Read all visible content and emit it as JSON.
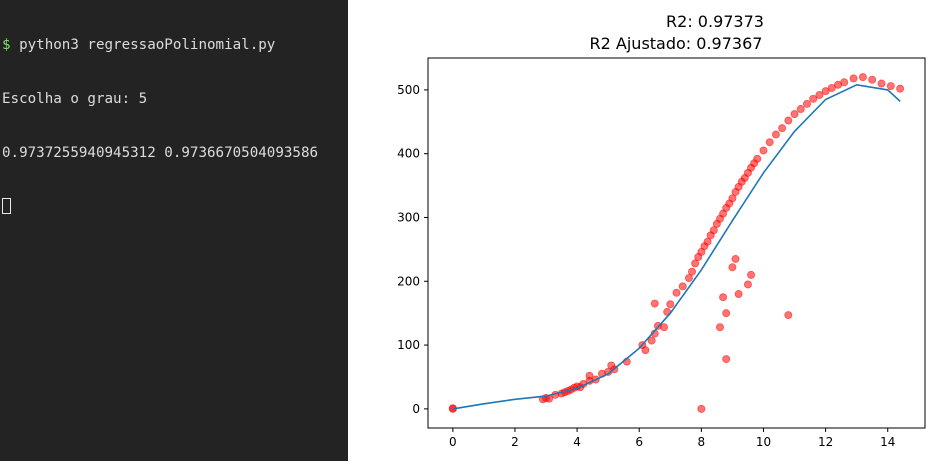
{
  "terminal": {
    "prompt_symbol": "$",
    "command": " python3 regressaoPolinomial.py",
    "line2": "Escolha o grau: 5",
    "line3": "0.9737255940945312 0.9736670504093586",
    "colors": {
      "background": "#232323",
      "text": "#dcdcdc",
      "prompt": "#7fe06a"
    }
  },
  "chart_data": {
    "type": "scatter",
    "title_line1": "R2: 0.97373",
    "title_line2": "R2 Ajustado: 0.97367",
    "xlabel": "",
    "ylabel": "",
    "xlim": [
      -0.8,
      15.2
    ],
    "ylim": [
      -30,
      550
    ],
    "x_ticks": [
      0,
      2,
      4,
      6,
      8,
      10,
      12,
      14
    ],
    "y_ticks": [
      0,
      100,
      200,
      300,
      400,
      500
    ],
    "grid": false,
    "series": [
      {
        "kind": "scatter",
        "color": "#ff0000",
        "alpha": 0.55,
        "points": [
          [
            0,
            0
          ],
          [
            0,
            1
          ],
          [
            2.9,
            15
          ],
          [
            3.0,
            17
          ],
          [
            3.1,
            16
          ],
          [
            3.3,
            22
          ],
          [
            3.5,
            24
          ],
          [
            3.6,
            26
          ],
          [
            3.7,
            28
          ],
          [
            3.8,
            30
          ],
          [
            3.9,
            33
          ],
          [
            4.0,
            35
          ],
          [
            4.1,
            34
          ],
          [
            4.2,
            39
          ],
          [
            4.4,
            44
          ],
          [
            4.4,
            52
          ],
          [
            4.6,
            46
          ],
          [
            4.8,
            55
          ],
          [
            5.0,
            58
          ],
          [
            5.2,
            62
          ],
          [
            5.1,
            68
          ],
          [
            5.6,
            74
          ],
          [
            6.1,
            100
          ],
          [
            6.2,
            92
          ],
          [
            6.4,
            107
          ],
          [
            6.5,
            118
          ],
          [
            6.5,
            165
          ],
          [
            6.6,
            130
          ],
          [
            6.8,
            128
          ],
          [
            6.9,
            152
          ],
          [
            7.0,
            164
          ],
          [
            7.2,
            182
          ],
          [
            7.4,
            192
          ],
          [
            7.6,
            205
          ],
          [
            7.7,
            215
          ],
          [
            7.8,
            228
          ],
          [
            7.9,
            238
          ],
          [
            8.0,
            246
          ],
          [
            8.1,
            255
          ],
          [
            8.2,
            262
          ],
          [
            8.3,
            272
          ],
          [
            8.4,
            280
          ],
          [
            8.5,
            290
          ],
          [
            8.6,
            298
          ],
          [
            8.7,
            306
          ],
          [
            8.8,
            315
          ],
          [
            8.9,
            322
          ],
          [
            9.0,
            330
          ],
          [
            9.1,
            340
          ],
          [
            9.2,
            348
          ],
          [
            9.3,
            356
          ],
          [
            9.4,
            362
          ],
          [
            9.5,
            370
          ],
          [
            9.6,
            378
          ],
          [
            9.7,
            385
          ],
          [
            9.8,
            392
          ],
          [
            10.0,
            405
          ],
          [
            10.2,
            418
          ],
          [
            10.4,
            430
          ],
          [
            10.6,
            440
          ],
          [
            10.8,
            452
          ],
          [
            11.0,
            462
          ],
          [
            11.2,
            470
          ],
          [
            11.4,
            478
          ],
          [
            11.6,
            486
          ],
          [
            11.8,
            492
          ],
          [
            12.0,
            498
          ],
          [
            12.2,
            503
          ],
          [
            12.4,
            508
          ],
          [
            12.6,
            512
          ],
          [
            12.9,
            518
          ],
          [
            13.2,
            520
          ],
          [
            13.5,
            516
          ],
          [
            13.8,
            510
          ],
          [
            14.1,
            506
          ],
          [
            14.4,
            502
          ],
          [
            8.0,
            0
          ],
          [
            8.8,
            78
          ],
          [
            8.6,
            128
          ],
          [
            8.8,
            150
          ],
          [
            9.2,
            180
          ],
          [
            9.5,
            195
          ],
          [
            9.1,
            235
          ],
          [
            9.0,
            222
          ],
          [
            8.7,
            175
          ],
          [
            10.8,
            147
          ],
          [
            9.6,
            210
          ]
        ]
      },
      {
        "kind": "line",
        "color": "#1f77b4",
        "points": [
          [
            0,
            0
          ],
          [
            1,
            8
          ],
          [
            2,
            15
          ],
          [
            3,
            20
          ],
          [
            4,
            32
          ],
          [
            5,
            55
          ],
          [
            6,
            95
          ],
          [
            7,
            150
          ],
          [
            8,
            218
          ],
          [
            9,
            295
          ],
          [
            10,
            370
          ],
          [
            11,
            435
          ],
          [
            12,
            485
          ],
          [
            13,
            508
          ],
          [
            14,
            500
          ],
          [
            14.4,
            482
          ]
        ]
      }
    ]
  }
}
